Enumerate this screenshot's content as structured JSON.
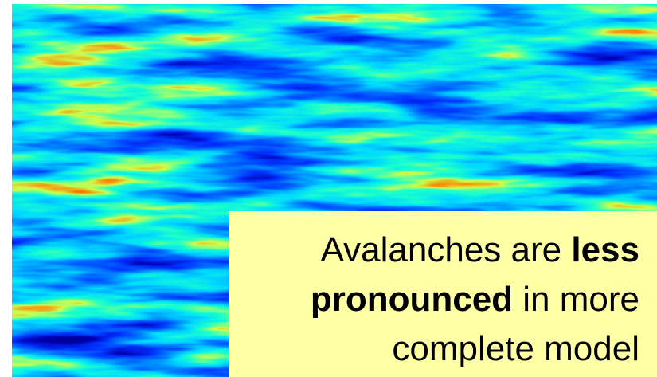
{
  "callout": {
    "segments": [
      {
        "text": "Avalanches are ",
        "bold": false
      },
      {
        "text": "less",
        "bold": true
      },
      {
        "text": " ",
        "bold": false
      },
      {
        "text": "pronounced",
        "bold": true
      },
      {
        "text": " in more complete model",
        "bold": false
      }
    ]
  }
}
